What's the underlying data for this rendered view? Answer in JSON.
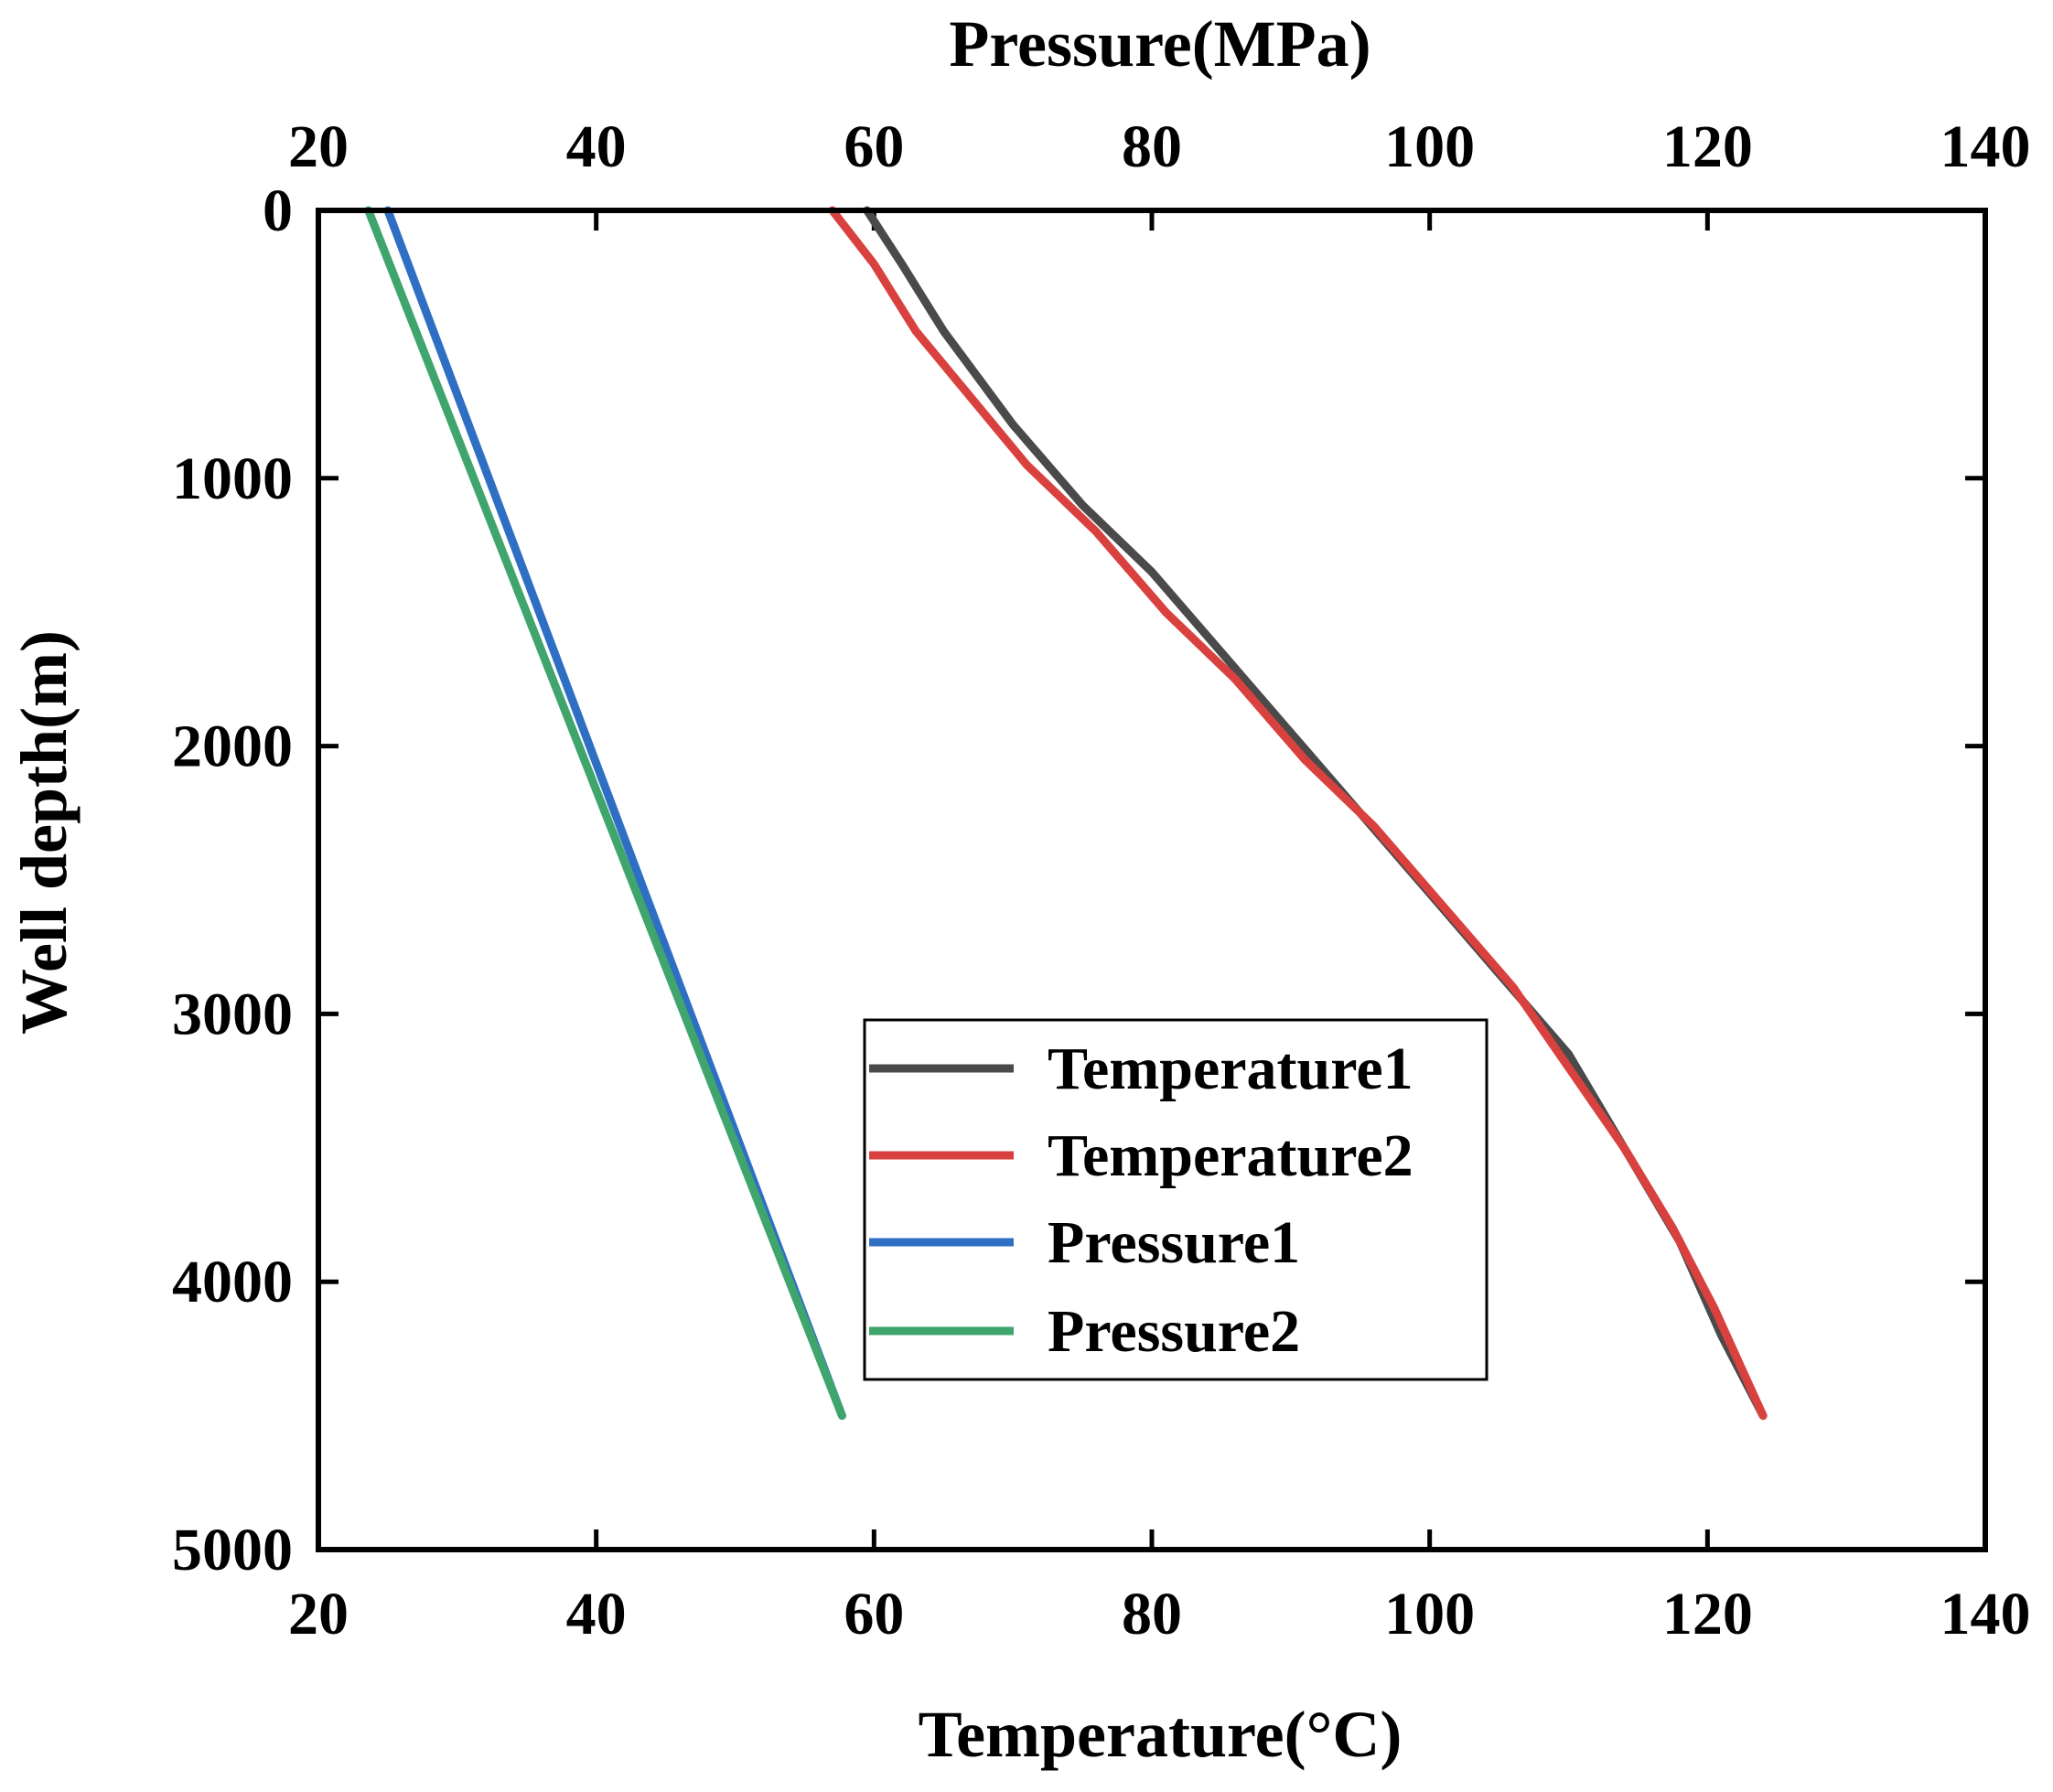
{
  "chart_data": {
    "type": "line",
    "x_axis_bottom": {
      "label": "Temperature(°C)",
      "range": [
        20,
        140
      ],
      "ticks": [
        "20",
        "40",
        "60",
        "80",
        "100",
        "120",
        "140"
      ]
    },
    "x_axis_top": {
      "label": "Pressure(MPa)",
      "range": [
        20,
        140
      ],
      "ticks": [
        "20",
        "40",
        "60",
        "80",
        "100",
        "120",
        "140"
      ]
    },
    "y_axis": {
      "label": "Well depth(m)",
      "range": [
        0,
        5000
      ],
      "inverted": true,
      "ticks": [
        "0",
        "1000",
        "2000",
        "3000",
        "4000",
        "5000"
      ]
    },
    "legend_position": "center",
    "series": [
      {
        "name": "Temperature1",
        "axis": "bottom",
        "color": "#4a4a4a",
        "points": [
          [
            59.5,
            0
          ],
          [
            62,
            200
          ],
          [
            65,
            450
          ],
          [
            70,
            800
          ],
          [
            75,
            1100
          ],
          [
            80,
            1350
          ],
          [
            85,
            1650
          ],
          [
            90,
            1950
          ],
          [
            95,
            2250
          ],
          [
            100,
            2550
          ],
          [
            105,
            2850
          ],
          [
            110,
            3150
          ],
          [
            114,
            3500
          ],
          [
            118,
            3850
          ],
          [
            121,
            4200
          ],
          [
            124,
            4500
          ]
        ]
      },
      {
        "name": "Temperature2",
        "axis": "bottom",
        "color": "#d9413f",
        "points": [
          [
            57,
            0
          ],
          [
            60,
            200
          ],
          [
            63,
            450
          ],
          [
            67,
            700
          ],
          [
            71,
            950
          ],
          [
            76,
            1200
          ],
          [
            81,
            1500
          ],
          [
            86,
            1750
          ],
          [
            91,
            2050
          ],
          [
            96,
            2300
          ],
          [
            101,
            2600
          ],
          [
            106,
            2900
          ],
          [
            110,
            3200
          ],
          [
            114,
            3500
          ],
          [
            117.5,
            3800
          ],
          [
            120.5,
            4100
          ],
          [
            124,
            4500
          ]
        ]
      },
      {
        "name": "Pressure1",
        "axis": "top",
        "color": "#2e6fc4",
        "points": [
          [
            25,
            0
          ],
          [
            57.7,
            4500
          ]
        ]
      },
      {
        "name": "Pressure2",
        "axis": "top",
        "color": "#3fa56d",
        "points": [
          [
            23.6,
            0
          ],
          [
            57.7,
            4500
          ]
        ]
      }
    ]
  }
}
